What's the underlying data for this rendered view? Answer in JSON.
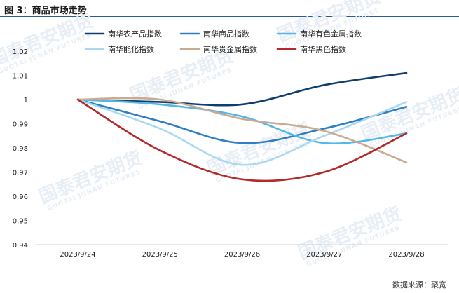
{
  "figure": {
    "title": "图 3：商品市场走势",
    "source": "数据来源：聚宽",
    "watermark": "国泰君安期货",
    "watermark_sub": "GUOTAI JUNAN FUTURES"
  },
  "chart_data": {
    "type": "line",
    "title": "",
    "xlabel": "",
    "ylabel": "",
    "categories": [
      "2023/9/24",
      "2023/9/25",
      "2023/9/26",
      "2023/9/27",
      "2023/9/28"
    ],
    "ylim": [
      0.94,
      1.02
    ],
    "yticks": [
      0.94,
      0.95,
      0.96,
      0.97,
      0.98,
      0.99,
      1,
      1.01,
      1.02
    ],
    "grid": false,
    "legend_position": "top",
    "smooth": true,
    "series": [
      {
        "name": "南华农产品指数",
        "color": "#0e3d6e",
        "values": [
          1.0,
          0.999,
          0.998,
          1.006,
          1.011
        ]
      },
      {
        "name": "南华商品指数",
        "color": "#2f7ec1",
        "values": [
          1.0,
          0.991,
          0.982,
          0.988,
          0.997
        ]
      },
      {
        "name": "南华有色金属指数",
        "color": "#52b7e6",
        "values": [
          1.0,
          0.998,
          0.993,
          0.982,
          0.986
        ]
      },
      {
        "name": "南华能化指数",
        "color": "#a9d9f2",
        "values": [
          1.0,
          0.988,
          0.973,
          0.985,
          0.999
        ]
      },
      {
        "name": "南华贵金属指数",
        "color": "#c9ab93",
        "values": [
          1.0,
          1.0,
          0.992,
          0.987,
          0.974
        ]
      },
      {
        "name": "南华黑色指数",
        "color": "#b22a2a",
        "values": [
          1.0,
          0.979,
          0.967,
          0.97,
          0.986
        ]
      }
    ]
  }
}
